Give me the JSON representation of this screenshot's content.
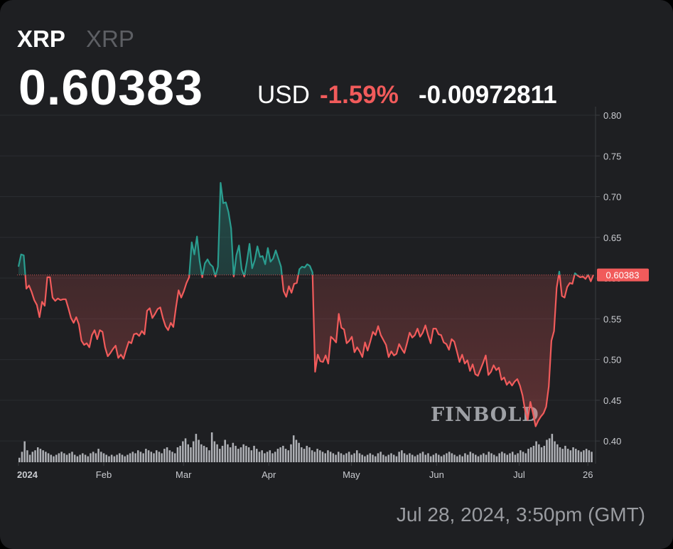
{
  "header": {
    "symbol": "XRP",
    "name": "XRP",
    "price": "0.60383",
    "currency": "USD",
    "change_pct": "-1.59%",
    "change_abs": "-0.00972811"
  },
  "price_label": "0.60383",
  "watermark": "FINBOLD",
  "timestamp": "Jul 28, 2024, 3:50pm (GMT)",
  "colors": {
    "up": "#2a9d8f",
    "down": "#f15b5b",
    "background": "#1e1f22"
  },
  "chart_data": {
    "type": "line",
    "x_range": [
      "2024-01-01",
      "2024-07-28"
    ],
    "ylim": [
      0.38,
      0.8
    ],
    "yticks": [
      "0.80",
      "0.75",
      "0.70",
      "0.65",
      "0.60",
      "0.55",
      "0.50",
      "0.45",
      "0.40"
    ],
    "xticks": [
      "2024",
      "Feb",
      "Mar",
      "Apr",
      "May",
      "Jun",
      "Jul",
      "26"
    ],
    "last_price": 0.60383,
    "series": [
      {
        "values": [
          0.614,
          0.629,
          0.628,
          0.587,
          0.591,
          0.583,
          0.573,
          0.567,
          0.552,
          0.571,
          0.566,
          0.601,
          0.601,
          0.576,
          0.572,
          0.575,
          0.573,
          0.574,
          0.574,
          0.563,
          0.551,
          0.545,
          0.552,
          0.543,
          0.523,
          0.518,
          0.52,
          0.515,
          0.53,
          0.536,
          0.525,
          0.536,
          0.534,
          0.515,
          0.504,
          0.508,
          0.513,
          0.517,
          0.502,
          0.506,
          0.501,
          0.512,
          0.522,
          0.52,
          0.531,
          0.532,
          0.529,
          0.535,
          0.531,
          0.56,
          0.563,
          0.551,
          0.556,
          0.562,
          0.564,
          0.551,
          0.541,
          0.536,
          0.545,
          0.54,
          0.564,
          0.585,
          0.576,
          0.584,
          0.594,
          0.601,
          0.644,
          0.629,
          0.651,
          0.621,
          0.601,
          0.618,
          0.623,
          0.617,
          0.614,
          0.602,
          0.614,
          0.717,
          0.692,
          0.693,
          0.681,
          0.661,
          0.602,
          0.628,
          0.64,
          0.611,
          0.602,
          0.62,
          0.642,
          0.612,
          0.622,
          0.639,
          0.626,
          0.627,
          0.617,
          0.637,
          0.62,
          0.624,
          0.634,
          0.624,
          0.614,
          0.584,
          0.577,
          0.59,
          0.582,
          0.593,
          0.594,
          0.611,
          0.614,
          0.613,
          0.617,
          0.615,
          0.607,
          0.485,
          0.506,
          0.498,
          0.497,
          0.505,
          0.495,
          0.528,
          0.525,
          0.521,
          0.556,
          0.539,
          0.537,
          0.52,
          0.523,
          0.528,
          0.509,
          0.515,
          0.51,
          0.503,
          0.521,
          0.511,
          0.522,
          0.534,
          0.53,
          0.541,
          0.53,
          0.524,
          0.518,
          0.503,
          0.51,
          0.505,
          0.507,
          0.519,
          0.513,
          0.508,
          0.52,
          0.533,
          0.527,
          0.53,
          0.538,
          0.528,
          0.533,
          0.542,
          0.53,
          0.52,
          0.538,
          0.538,
          0.531,
          0.53,
          0.521,
          0.519,
          0.512,
          0.525,
          0.522,
          0.51,
          0.497,
          0.506,
          0.495,
          0.499,
          0.486,
          0.494,
          0.482,
          0.48,
          0.488,
          0.496,
          0.505,
          0.481,
          0.485,
          0.493,
          0.487,
          0.49,
          0.475,
          0.478,
          0.469,
          0.473,
          0.468,
          0.473,
          0.476,
          0.468,
          0.456,
          0.437,
          0.426,
          0.448,
          0.434,
          0.418,
          0.425,
          0.43,
          0.434,
          0.442,
          0.467,
          0.523,
          0.535,
          0.588,
          0.608,
          0.578,
          0.576,
          0.589,
          0.594,
          0.593,
          0.606,
          0.603,
          0.601,
          0.602,
          0.599,
          0.604,
          0.596,
          0.604
        ]
      }
    ],
    "volume": [
      0.15,
      0.35,
      0.7,
      0.4,
      0.25,
      0.35,
      0.4,
      0.5,
      0.45,
      0.4,
      0.35,
      0.3,
      0.25,
      0.2,
      0.25,
      0.3,
      0.35,
      0.3,
      0.25,
      0.3,
      0.35,
      0.25,
      0.2,
      0.25,
      0.3,
      0.25,
      0.2,
      0.3,
      0.35,
      0.3,
      0.45,
      0.35,
      0.3,
      0.25,
      0.2,
      0.25,
      0.2,
      0.25,
      0.3,
      0.25,
      0.2,
      0.25,
      0.3,
      0.35,
      0.3,
      0.4,
      0.35,
      0.3,
      0.45,
      0.4,
      0.35,
      0.3,
      0.4,
      0.35,
      0.3,
      0.45,
      0.5,
      0.4,
      0.35,
      0.3,
      0.5,
      0.55,
      0.7,
      0.8,
      0.6,
      0.5,
      0.7,
      0.95,
      0.75,
      0.6,
      0.55,
      0.5,
      0.4,
      1,
      0.7,
      0.6,
      0.45,
      0.55,
      0.75,
      0.6,
      0.5,
      0.65,
      0.55,
      0.45,
      0.5,
      0.6,
      0.55,
      0.5,
      0.4,
      0.55,
      0.45,
      0.35,
      0.4,
      0.3,
      0.35,
      0.4,
      0.3,
      0.35,
      0.45,
      0.5,
      0.55,
      0.45,
      0.4,
      0.6,
      0.9,
      0.75,
      0.65,
      0.5,
      0.45,
      0.55,
      0.5,
      0.4,
      0.35,
      0.45,
      0.4,
      0.35,
      0.3,
      0.4,
      0.35,
      0.3,
      0.25,
      0.35,
      0.3,
      0.25,
      0.3,
      0.35,
      0.25,
      0.3,
      0.4,
      0.3,
      0.25,
      0.2,
      0.25,
      0.3,
      0.25,
      0.2,
      0.3,
      0.35,
      0.25,
      0.2,
      0.25,
      0.3,
      0.25,
      0.2,
      0.35,
      0.4,
      0.3,
      0.25,
      0.3,
      0.25,
      0.2,
      0.25,
      0.3,
      0.35,
      0.25,
      0.3,
      0.2,
      0.25,
      0.3,
      0.25,
      0.2,
      0.25,
      0.3,
      0.35,
      0.3,
      0.25,
      0.2,
      0.25,
      0.2,
      0.3,
      0.25,
      0.35,
      0.3,
      0.25,
      0.2,
      0.25,
      0.3,
      0.25,
      0.35,
      0.3,
      0.25,
      0.2,
      0.3,
      0.35,
      0.3,
      0.25,
      0.3,
      0.35,
      0.25,
      0.3,
      0.4,
      0.35,
      0.3,
      0.45,
      0.5,
      0.55,
      0.7,
      0.6,
      0.5,
      0.55,
      0.75,
      0.8,
      0.95,
      0.7,
      0.6,
      0.5,
      0.45,
      0.55,
      0.45,
      0.4,
      0.5,
      0.45,
      0.4,
      0.35,
      0.4,
      0.45,
      0.4,
      0.35
    ]
  }
}
